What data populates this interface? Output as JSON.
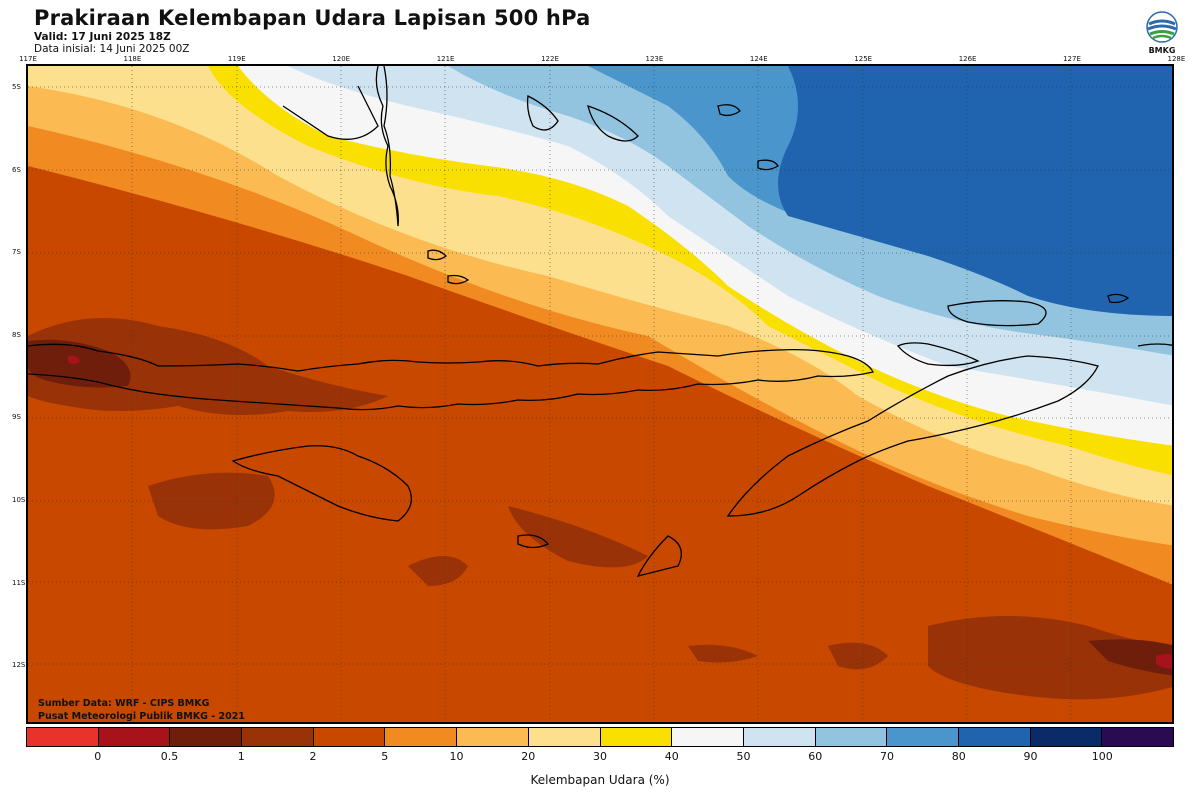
{
  "header": {
    "title": "Prakiraan Kelembapan Udara Lapisan 500 hPa",
    "valid": "Valid: 17 Juni 2025 18Z",
    "init": "Data inisial: 14 Juni 2025 00Z"
  },
  "logo": {
    "icon": "bmkg-logo-icon",
    "label": "BMKG"
  },
  "map": {
    "longitude_labels": [
      "117E",
      "118E",
      "119E",
      "120E",
      "121E",
      "122E",
      "123E",
      "124E",
      "125E",
      "126E",
      "127E",
      "128E"
    ],
    "latitude_labels": [
      "5S",
      "6S",
      "7S",
      "8S",
      "9S",
      "10S",
      "11S",
      "12S"
    ],
    "grid": true
  },
  "credits": {
    "source": "Sumber Data: WRF - CIPS BMKG",
    "publisher": "Pusat Meteorologi Publik BMKG - 2021"
  },
  "colorbar": {
    "colors": [
      "#e8322c",
      "#a8121a",
      "#6e1e0a",
      "#9a3208",
      "#c84800",
      "#f28a22",
      "#fbbb52",
      "#fde08e",
      "#f9e000",
      "#f6f6f6",
      "#cfe3f0",
      "#92c4e0",
      "#4a96cc",
      "#2064b0",
      "#0b2a68",
      "#2a0a50"
    ],
    "tick_labels": [
      "0",
      "0.5",
      "1",
      "2",
      "5",
      "10",
      "20",
      "30",
      "40",
      "50",
      "60",
      "70",
      "80",
      "90",
      "100"
    ],
    "label": "Kelembapan Udara (%)"
  }
}
